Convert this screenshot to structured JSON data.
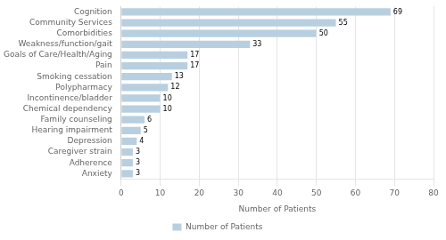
{
  "chart_data": {
    "type": "bar",
    "orientation": "horizontal",
    "categories": [
      "Cognition",
      "Community Services",
      "Comorbidities",
      "Weakness/function/gait",
      "Goals of Care/Health/Aging",
      "Pain",
      "Smoking cessation",
      "Polypharmacy",
      "Incontinence/bladder",
      "Chemical dependency",
      "Family counseling",
      "Hearing impairment",
      "Depression",
      "Caregiver strain",
      "Adherence",
      "Anxiety"
    ],
    "series": [
      {
        "name": "Number of Patients",
        "color": "#b8cfe0",
        "values": [
          69,
          55,
          50,
          33,
          17,
          17,
          13,
          12,
          10,
          10,
          6,
          5,
          4,
          3,
          3,
          3
        ]
      }
    ],
    "xlabel": "Number of Patients",
    "xlim": [
      0,
      80
    ],
    "xticks": [
      0,
      10,
      20,
      30,
      40,
      50,
      60,
      70,
      80
    ],
    "grid": true,
    "data_labels": true,
    "legend": "bottom"
  }
}
